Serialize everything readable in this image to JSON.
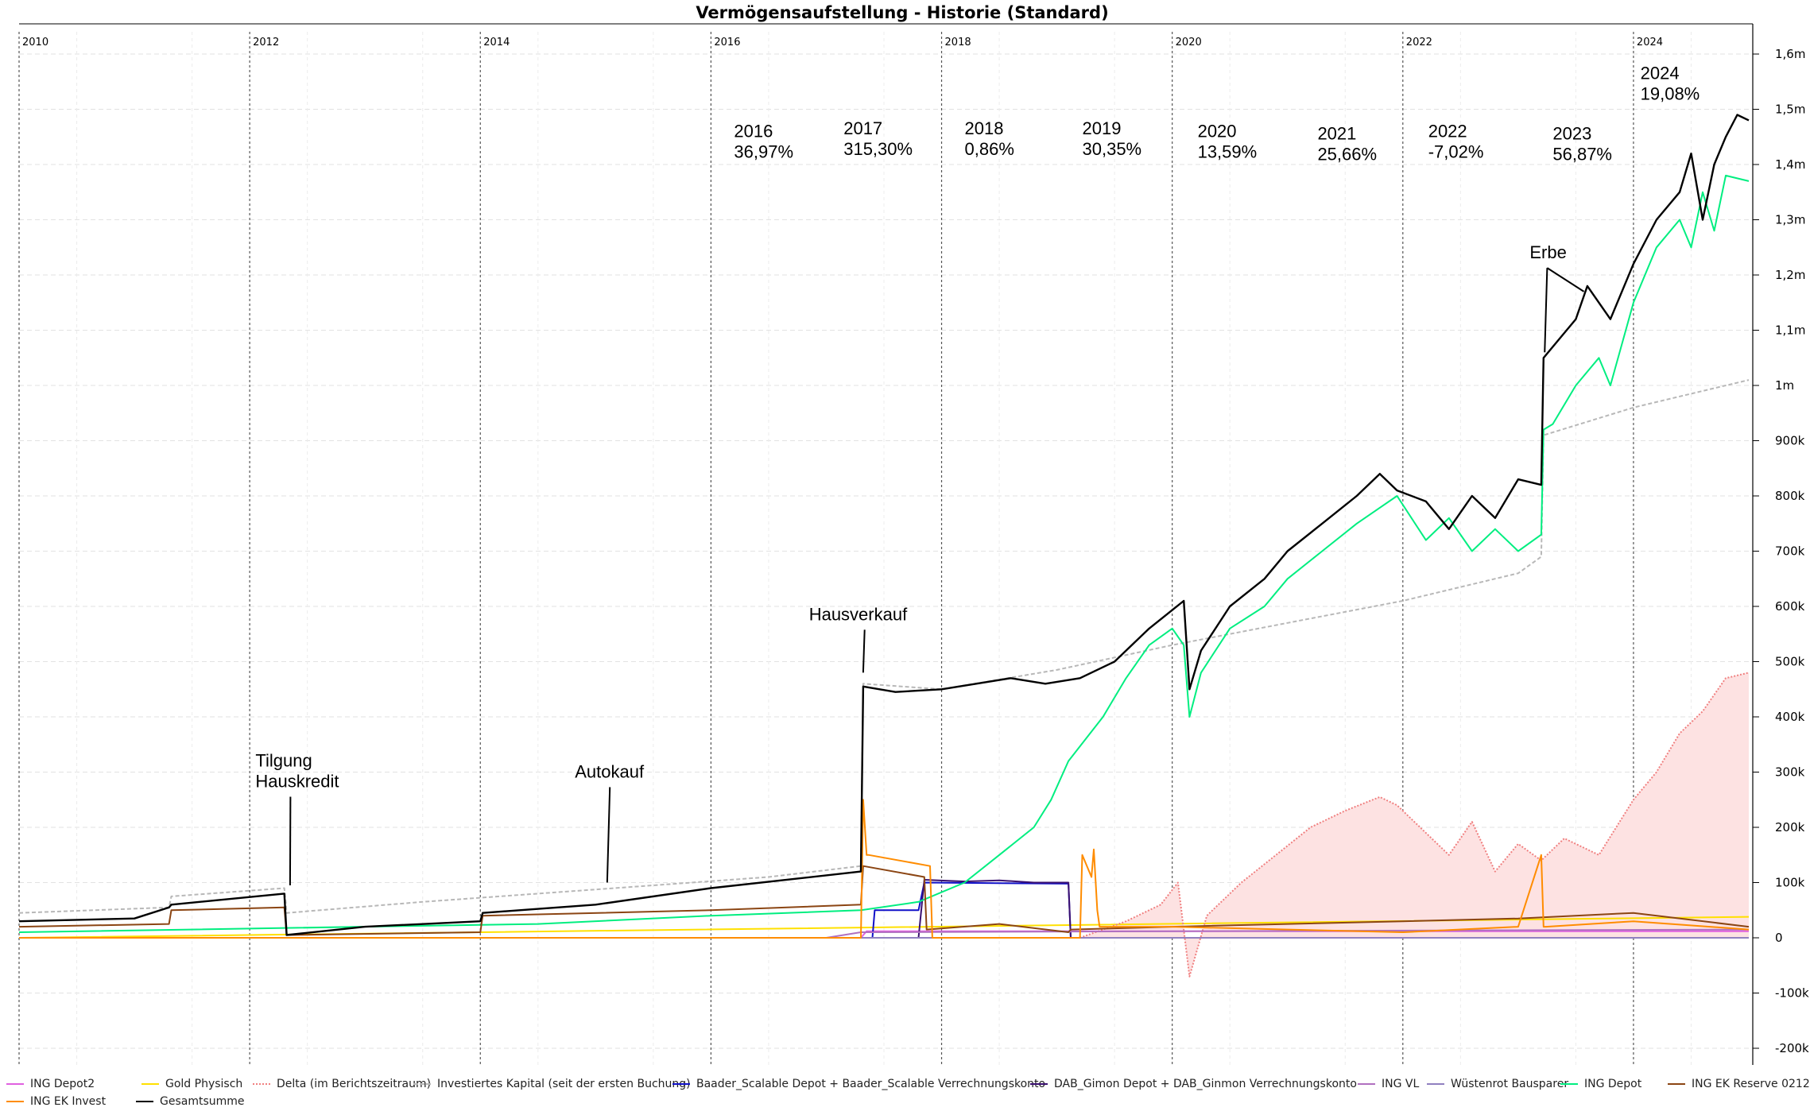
{
  "chart_data": {
    "type": "line",
    "title": "Vermögensaufstellung - Historie (Standard)",
    "xlabel": "",
    "ylabel": "",
    "x_ticks": [
      "2010",
      "2012",
      "2014",
      "2016",
      "2018",
      "2020",
      "2022",
      "2024"
    ],
    "xlim": [
      2010.0,
      2025.1
    ],
    "ylim": [
      -230000,
      1660000
    ],
    "y_ticks": [
      {
        "v": 1600000,
        "label": "1,6m"
      },
      {
        "v": 1500000,
        "label": "1,5m"
      },
      {
        "v": 1400000,
        "label": "1,4m"
      },
      {
        "v": 1300000,
        "label": "1,3m"
      },
      {
        "v": 1200000,
        "label": "1,2m"
      },
      {
        "v": 1100000,
        "label": "1,1m"
      },
      {
        "v": 1000000,
        "label": "1m"
      },
      {
        "v": 900000,
        "label": "900k"
      },
      {
        "v": 800000,
        "label": "800k"
      },
      {
        "v": 700000,
        "label": "700k"
      },
      {
        "v": 600000,
        "label": "600k"
      },
      {
        "v": 500000,
        "label": "500k"
      },
      {
        "v": 400000,
        "label": "400k"
      },
      {
        "v": 300000,
        "label": "300k"
      },
      {
        "v": 200000,
        "label": "200k"
      },
      {
        "v": 100000,
        "label": "100k"
      },
      {
        "v": 0,
        "label": "0"
      },
      {
        "v": -100000,
        "label": "-100k"
      },
      {
        "v": -200000,
        "label": "-200k"
      }
    ],
    "grid": true,
    "legend_position": "bottom",
    "series": [
      {
        "name": "ING Depot2",
        "color": "#e060e0",
        "style": "solid",
        "x": [
          2010.0,
          2017.3,
          2017.35,
          2025.0
        ],
        "y": [
          0,
          0,
          12000,
          12000
        ]
      },
      {
        "name": "Gold Physisch",
        "color": "#ffe000",
        "style": "solid",
        "x": [
          2010.0,
          2010.02,
          2025.0
        ],
        "y": [
          0,
          0,
          38000
        ]
      },
      {
        "name": "Delta (im Berichtszeitraum)",
        "color": "#f08080",
        "style": "dotted",
        "fill": "#fde2e2",
        "x": [
          2019.2,
          2019.6,
          2019.9,
          2020.05,
          2020.15,
          2020.3,
          2020.6,
          2020.9,
          2021.2,
          2021.5,
          2021.8,
          2021.95,
          2022.2,
          2022.4,
          2022.6,
          2022.8,
          2023.0,
          2023.2,
          2023.4,
          2023.7,
          2024.0,
          2024.2,
          2024.4,
          2024.6,
          2024.8,
          2025.0
        ],
        "y": [
          0,
          30000,
          60000,
          100000,
          -70000,
          40000,
          100000,
          150000,
          200000,
          230000,
          255000,
          240000,
          190000,
          150000,
          210000,
          120000,
          170000,
          140000,
          180000,
          150000,
          250000,
          300000,
          370000,
          410000,
          470000,
          480000
        ]
      },
      {
        "name": "Investiertes Kapital (seit der ersten Buchung)",
        "color": "#b8b8b8",
        "style": "dashed",
        "x": [
          2010.0,
          2011.3,
          2011.32,
          2012.3,
          2012.32,
          2013.5,
          2014.5,
          2015.5,
          2016.5,
          2017.3,
          2017.32,
          2018.0,
          2019.0,
          2020.0,
          2021.0,
          2022.0,
          2023.0,
          2023.2,
          2023.22,
          2024.0,
          2024.5,
          2025.0
        ],
        "y": [
          45000,
          55000,
          75000,
          90000,
          45000,
          65000,
          80000,
          95000,
          110000,
          130000,
          460000,
          450000,
          485000,
          530000,
          570000,
          610000,
          660000,
          690000,
          910000,
          960000,
          985000,
          1010000
        ]
      },
      {
        "name": "Baader_Scalable Depot + Baader_Scalable Verrechnungskonto",
        "color": "#1010c8",
        "style": "solid",
        "x": [
          2017.3,
          2017.4,
          2017.42,
          2017.8,
          2017.85,
          2019.1,
          2019.12
        ],
        "y": [
          0,
          0,
          50000,
          50000,
          100000,
          98000,
          0
        ]
      },
      {
        "name": "DAB_Gimon Depot + DAB_Ginmon Verrechnungskonto",
        "color": "#3a1070",
        "style": "solid",
        "x": [
          2017.8,
          2017.85,
          2018.2,
          2018.5,
          2018.8,
          2019.1,
          2019.12,
          2025.0
        ],
        "y": [
          0,
          105000,
          102000,
          104000,
          100000,
          100000,
          0,
          0
        ]
      },
      {
        "name": "ING VL",
        "color": "#b070c0",
        "style": "solid",
        "x": [
          2010.0,
          2017.0,
          2017.3,
          2025.0
        ],
        "y": [
          0,
          0,
          10000,
          15000
        ]
      },
      {
        "name": "Wüstenrot Bausparer",
        "color": "#9080c0",
        "style": "solid",
        "x": [
          2010.0,
          2025.0
        ],
        "y": [
          0,
          0
        ]
      },
      {
        "name": "ING Depot",
        "color": "#00ee80",
        "style": "solid",
        "x": [
          2010.0,
          2014.5,
          2016.0,
          2017.3,
          2017.8,
          2018.2,
          2018.5,
          2018.8,
          2018.95,
          2019.1,
          2019.4,
          2019.6,
          2019.8,
          2020.0,
          2020.1,
          2020.15,
          2020.25,
          2020.5,
          2020.8,
          2021.0,
          2021.3,
          2021.6,
          2021.95,
          2022.2,
          2022.4,
          2022.6,
          2022.8,
          2023.0,
          2023.2,
          2023.22,
          2023.3,
          2023.5,
          2023.7,
          2023.8,
          2024.0,
          2024.2,
          2024.4,
          2024.5,
          2024.6,
          2024.7,
          2024.8,
          2025.0
        ],
        "y": [
          10000,
          25000,
          40000,
          50000,
          65000,
          100000,
          150000,
          200000,
          250000,
          320000,
          400000,
          470000,
          530000,
          560000,
          530000,
          400000,
          480000,
          560000,
          600000,
          650000,
          700000,
          750000,
          800000,
          720000,
          760000,
          700000,
          740000,
          700000,
          730000,
          920000,
          930000,
          1000000,
          1050000,
          1000000,
          1150000,
          1250000,
          1300000,
          1250000,
          1350000,
          1280000,
          1380000,
          1370000
        ]
      },
      {
        "name": "ING EK Reserve 0212",
        "color": "#8b4513",
        "style": "solid",
        "x": [
          2010.0,
          2011.3,
          2011.32,
          2012.3,
          2012.32,
          2014.0,
          2014.02,
          2016.0,
          2017.3,
          2017.32,
          2017.85,
          2017.87,
          2018.5,
          2019.1,
          2019.12,
          2020.0,
          2021.0,
          2022.0,
          2023.0,
          2024.0,
          2025.0
        ],
        "y": [
          20000,
          25000,
          50000,
          55000,
          5000,
          10000,
          40000,
          50000,
          60000,
          130000,
          110000,
          15000,
          25000,
          10000,
          15000,
          20000,
          25000,
          30000,
          35000,
          45000,
          20000
        ]
      },
      {
        "name": "ING EK Invest",
        "color": "#ff8c00",
        "style": "solid",
        "x": [
          2010.0,
          2017.3,
          2017.32,
          2017.35,
          2017.37,
          2017.9,
          2017.92,
          2018.0,
          2019.2,
          2019.22,
          2019.3,
          2019.32,
          2019.35,
          2019.37,
          2020.0,
          2021.0,
          2022.0,
          2023.0,
          2023.2,
          2023.22,
          2023.24,
          2024.0,
          2025.0
        ],
        "y": [
          0,
          0,
          250000,
          150000,
          150000,
          130000,
          0,
          0,
          0,
          150000,
          110000,
          160000,
          50000,
          20000,
          20000,
          15000,
          10000,
          20000,
          150000,
          20000,
          20000,
          30000,
          15000
        ]
      },
      {
        "name": "Gesamtsumme",
        "color": "#000000",
        "style": "solid",
        "x": [
          2010.0,
          2011.0,
          2011.3,
          2011.32,
          2012.3,
          2012.32,
          2013.0,
          2014.0,
          2014.02,
          2015.0,
          2016.0,
          2017.3,
          2017.32,
          2017.6,
          2018.0,
          2018.3,
          2018.6,
          2018.9,
          2019.2,
          2019.5,
          2019.8,
          2020.1,
          2020.15,
          2020.25,
          2020.5,
          2020.8,
          2021.0,
          2021.3,
          2021.6,
          2021.8,
          2021.95,
          2022.2,
          2022.4,
          2022.6,
          2022.8,
          2023.0,
          2023.2,
          2023.22,
          2023.3,
          2023.5,
          2023.6,
          2023.8,
          2024.0,
          2024.2,
          2024.4,
          2024.5,
          2024.6,
          2024.7,
          2024.8,
          2024.9,
          2025.0
        ],
        "y": [
          30000,
          35000,
          55000,
          60000,
          80000,
          5000,
          20000,
          30000,
          45000,
          60000,
          90000,
          120000,
          455000,
          445000,
          450000,
          460000,
          470000,
          460000,
          470000,
          500000,
          560000,
          610000,
          450000,
          520000,
          600000,
          650000,
          700000,
          750000,
          800000,
          840000,
          810000,
          790000,
          740000,
          800000,
          760000,
          830000,
          820000,
          1050000,
          1070000,
          1120000,
          1180000,
          1120000,
          1220000,
          1300000,
          1350000,
          1420000,
          1300000,
          1400000,
          1450000,
          1490000,
          1480000
        ]
      }
    ],
    "annotations": [
      {
        "text": "Tilgung\nHauskredit",
        "x": 2012.05,
        "y": 310000,
        "arrow_to": [
          2012.35,
          95000
        ]
      },
      {
        "text": "Autokauf",
        "x": 2014.82,
        "y": 290000,
        "arrow_to": [
          2015.1,
          100000
        ]
      },
      {
        "text": "Hausverkauf",
        "x": 2016.85,
        "y": 575000,
        "arrow_to": [
          2017.32,
          480000
        ]
      },
      {
        "text": "Erbe",
        "x": 2023.1,
        "y": 1230000,
        "arrow_to": [
          [
            2023.23,
            1060000
          ],
          [
            2023.57,
            1170000
          ]
        ]
      },
      {
        "text": "2016\n36,97%",
        "x": 2016.2,
        "y": 1450000
      },
      {
        "text": "2017\n315,30%",
        "x": 2017.15,
        "y": 1455000
      },
      {
        "text": "2018\n0,86%",
        "x": 2018.2,
        "y": 1455000
      },
      {
        "text": "2019\n30,35%",
        "x": 2019.22,
        "y": 1455000
      },
      {
        "text": "2020\n13,59%",
        "x": 2020.22,
        "y": 1450000
      },
      {
        "text": "2021\n25,66%",
        "x": 2021.26,
        "y": 1445000
      },
      {
        "text": "2022\n-7,02%",
        "x": 2022.22,
        "y": 1450000
      },
      {
        "text": "2023\n56,87%",
        "x": 2023.3,
        "y": 1445000
      },
      {
        "text": "2024\n19,08%",
        "x": 2024.06,
        "y": 1555000
      }
    ]
  }
}
